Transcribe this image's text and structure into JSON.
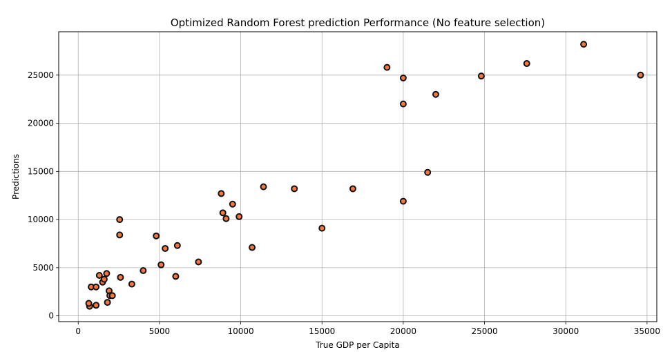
{
  "chart_data": {
    "type": "scatter",
    "title": "Optimized Random Forest prediction Performance (No feature selection)",
    "xlabel": "True GDP per Capita",
    "ylabel": "Predictions",
    "xlim": [
      -1200,
      35600
    ],
    "ylim": [
      -600,
      29500
    ],
    "xticks": [
      0,
      5000,
      10000,
      15000,
      20000,
      25000,
      30000,
      35000
    ],
    "yticks": [
      0,
      5000,
      10000,
      15000,
      20000,
      25000
    ],
    "grid": true,
    "legend": "none",
    "marker": {
      "fill": "#f4773f",
      "edge": "#111111"
    },
    "points": [
      {
        "x": 700,
        "y": 1000
      },
      {
        "x": 650,
        "y": 1300
      },
      {
        "x": 1100,
        "y": 1100
      },
      {
        "x": 800,
        "y": 3000
      },
      {
        "x": 1100,
        "y": 3000
      },
      {
        "x": 1300,
        "y": 4200
      },
      {
        "x": 1500,
        "y": 3500
      },
      {
        "x": 1600,
        "y": 3800
      },
      {
        "x": 1750,
        "y": 4400
      },
      {
        "x": 1800,
        "y": 1400
      },
      {
        "x": 1900,
        "y": 2600
      },
      {
        "x": 1950,
        "y": 2100
      },
      {
        "x": 2100,
        "y": 2100
      },
      {
        "x": 2550,
        "y": 10000
      },
      {
        "x": 2550,
        "y": 8400
      },
      {
        "x": 2600,
        "y": 4000
      },
      {
        "x": 3300,
        "y": 3300
      },
      {
        "x": 4000,
        "y": 4700
      },
      {
        "x": 4800,
        "y": 8300
      },
      {
        "x": 5100,
        "y": 5300
      },
      {
        "x": 5350,
        "y": 7000
      },
      {
        "x": 6000,
        "y": 4100
      },
      {
        "x": 6100,
        "y": 7300
      },
      {
        "x": 7400,
        "y": 5600
      },
      {
        "x": 8800,
        "y": 12700
      },
      {
        "x": 8900,
        "y": 10700
      },
      {
        "x": 9100,
        "y": 10100
      },
      {
        "x": 9500,
        "y": 11600
      },
      {
        "x": 9900,
        "y": 10300
      },
      {
        "x": 10700,
        "y": 7100
      },
      {
        "x": 11400,
        "y": 13400
      },
      {
        "x": 13300,
        "y": 13200
      },
      {
        "x": 15000,
        "y": 9100
      },
      {
        "x": 16900,
        "y": 13200
      },
      {
        "x": 19000,
        "y": 25800
      },
      {
        "x": 20000,
        "y": 24700
      },
      {
        "x": 20000,
        "y": 22000
      },
      {
        "x": 20000,
        "y": 11900
      },
      {
        "x": 21500,
        "y": 14900
      },
      {
        "x": 22000,
        "y": 23000
      },
      {
        "x": 24800,
        "y": 24900
      },
      {
        "x": 27600,
        "y": 26200
      },
      {
        "x": 31100,
        "y": 28200
      },
      {
        "x": 34600,
        "y": 25000
      }
    ]
  }
}
